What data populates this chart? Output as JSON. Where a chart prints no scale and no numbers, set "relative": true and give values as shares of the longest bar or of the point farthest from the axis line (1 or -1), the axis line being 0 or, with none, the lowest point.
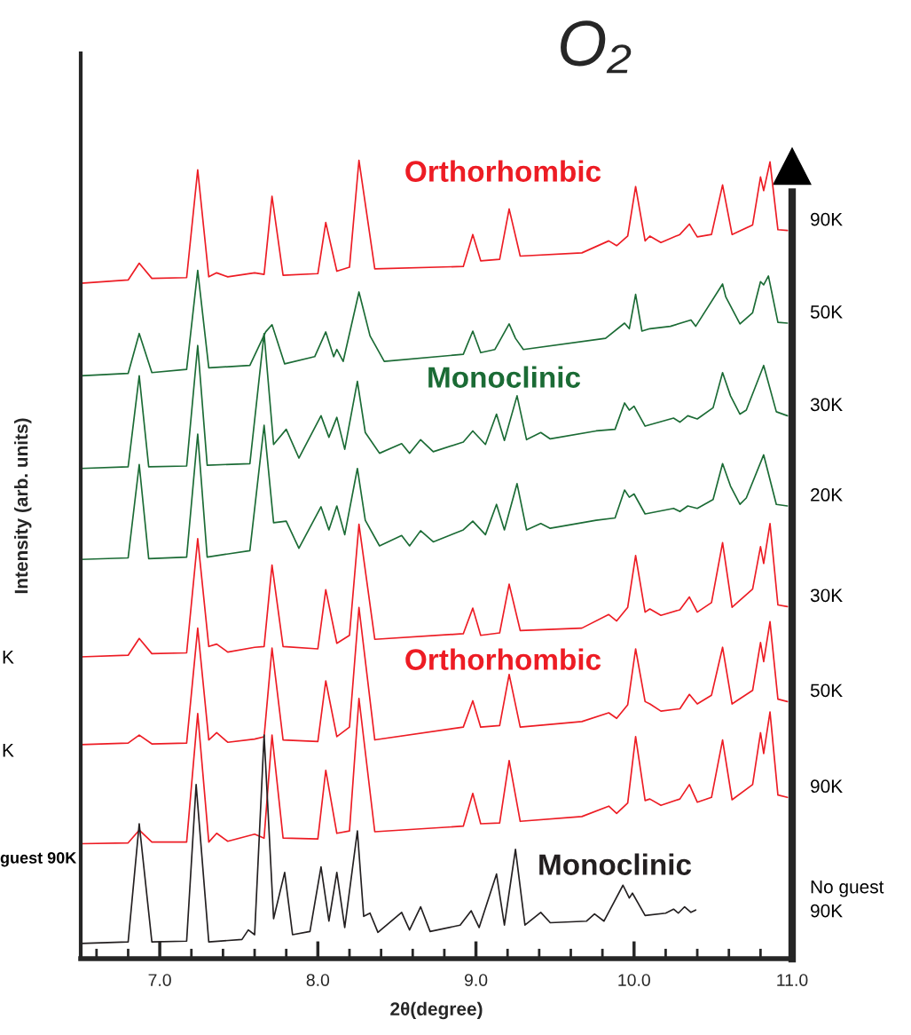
{
  "chart_data": {
    "type": "line",
    "title": "O₂",
    "xlabel": "2θ(degree)",
    "ylabel": "Intensity (arb. units)",
    "relative": true,
    "legend": false,
    "grid": false,
    "marker": "none",
    "line_style": "solid",
    "xlim": [
      6.5,
      11.0
    ],
    "xticks": [
      {
        "value": 6.6,
        "label": null
      },
      {
        "value": 6.8,
        "label": null
      },
      {
        "value": 7.0,
        "label": "7.0"
      },
      {
        "value": 7.2,
        "label": null
      },
      {
        "value": 7.4,
        "label": null
      },
      {
        "value": 7.6,
        "label": null
      },
      {
        "value": 7.8,
        "label": null
      },
      {
        "value": 8.0,
        "label": "8.0"
      },
      {
        "value": 8.2,
        "label": null
      },
      {
        "value": 8.4,
        "label": null
      },
      {
        "value": 8.6,
        "label": null
      },
      {
        "value": 8.8,
        "label": null
      },
      {
        "value": 9.0,
        "label": "9.0"
      },
      {
        "value": 9.2,
        "label": null
      },
      {
        "value": 9.4,
        "label": null
      },
      {
        "value": 9.6,
        "label": null
      },
      {
        "value": 9.8,
        "label": null
      },
      {
        "value": 10.0,
        "label": "10.0"
      },
      {
        "value": 10.2,
        "label": null
      },
      {
        "value": 10.4,
        "label": null
      },
      {
        "value": 10.6,
        "label": null
      },
      {
        "value": 10.8,
        "label": null
      },
      {
        "value": 11.0,
        "label": "11.0"
      }
    ],
    "annotations": [
      "Orthorhombic",
      "Monoclinic",
      "Orthorhombic",
      "Monoclinic",
      "K",
      "K",
      "guest 90K"
    ],
    "series": [
      {
        "name": "90K",
        "color": "#ed1c24",
        "x": [
          6.5,
          6.8,
          6.87,
          6.95,
          7.17,
          7.24,
          7.31,
          7.36,
          7.43,
          7.6,
          7.66,
          7.71,
          7.78,
          8.0,
          8.05,
          8.12,
          8.2,
          8.26,
          8.36,
          8.92,
          8.98,
          9.03,
          9.15,
          9.21,
          9.28,
          9.67,
          9.84,
          9.89,
          9.96,
          10.01,
          10.07,
          10.1,
          10.17,
          10.29,
          10.35,
          10.4,
          10.49,
          10.56,
          10.62,
          10.75,
          10.8,
          10.82,
          10.86,
          10.91,
          10.97
        ],
        "values": [
          0.846,
          0.85,
          0.871,
          0.852,
          0.853,
          0.988,
          0.854,
          0.859,
          0.854,
          0.859,
          0.857,
          0.955,
          0.856,
          0.858,
          0.922,
          0.861,
          0.866,
          1.0,
          0.864,
          0.867,
          0.907,
          0.874,
          0.876,
          0.939,
          0.88,
          0.884,
          0.899,
          0.893,
          0.905,
          0.967,
          0.899,
          0.905,
          0.897,
          0.907,
          0.92,
          0.904,
          0.907,
          0.969,
          0.907,
          0.919,
          0.979,
          0.962,
          0.998,
          0.913,
          0.912
        ]
      },
      {
        "name": "50K",
        "color": "#1b6b35",
        "x": [
          6.5,
          6.8,
          6.87,
          6.95,
          7.17,
          7.24,
          7.31,
          7.57,
          7.67,
          7.71,
          7.79,
          7.98,
          8.05,
          8.1,
          8.12,
          8.16,
          8.26,
          8.33,
          8.42,
          8.92,
          8.98,
          9.03,
          9.12,
          9.21,
          9.25,
          9.3,
          9.82,
          9.94,
          9.97,
          10.01,
          10.05,
          10.1,
          10.23,
          10.36,
          10.39,
          10.56,
          10.58,
          10.67,
          10.75,
          10.8,
          10.82,
          10.85,
          10.91,
          10.97
        ],
        "values": [
          0.73,
          0.733,
          0.783,
          0.734,
          0.738,
          0.862,
          0.74,
          0.743,
          0.785,
          0.794,
          0.745,
          0.754,
          0.785,
          0.754,
          0.763,
          0.748,
          0.835,
          0.78,
          0.748,
          0.757,
          0.786,
          0.759,
          0.763,
          0.795,
          0.777,
          0.763,
          0.777,
          0.796,
          0.789,
          0.832,
          0.786,
          0.789,
          0.792,
          0.8,
          0.792,
          0.845,
          0.829,
          0.795,
          0.809,
          0.848,
          0.844,
          0.855,
          0.797,
          0.796
        ]
      },
      {
        "name": "30K",
        "color": "#1b6b35",
        "x": [
          6.5,
          6.8,
          6.87,
          6.93,
          7.17,
          7.24,
          7.3,
          7.57,
          7.66,
          7.72,
          7.8,
          7.88,
          8.02,
          8.07,
          8.12,
          8.17,
          8.25,
          8.3,
          8.39,
          8.53,
          8.58,
          8.65,
          8.73,
          8.92,
          8.98,
          9.06,
          9.13,
          9.18,
          9.26,
          9.32,
          9.41,
          9.47,
          9.76,
          9.88,
          9.94,
          9.97,
          10.0,
          10.07,
          10.25,
          10.29,
          10.34,
          10.4,
          10.5,
          10.56,
          10.61,
          10.67,
          10.71,
          10.82,
          10.9,
          10.97
        ],
        "values": [
          0.614,
          0.616,
          0.73,
          0.616,
          0.617,
          0.768,
          0.618,
          0.62,
          0.783,
          0.644,
          0.663,
          0.627,
          0.68,
          0.653,
          0.678,
          0.638,
          0.723,
          0.659,
          0.633,
          0.645,
          0.633,
          0.65,
          0.635,
          0.647,
          0.661,
          0.644,
          0.682,
          0.649,
          0.705,
          0.65,
          0.659,
          0.651,
          0.661,
          0.663,
          0.696,
          0.687,
          0.692,
          0.667,
          0.677,
          0.672,
          0.68,
          0.676,
          0.69,
          0.734,
          0.705,
          0.682,
          0.687,
          0.743,
          0.685,
          0.68
        ]
      },
      {
        "name": "20K",
        "color": "#1b6b35",
        "x": [
          6.5,
          6.8,
          6.87,
          6.93,
          7.17,
          7.24,
          7.3,
          7.57,
          7.66,
          7.72,
          7.8,
          7.88,
          8.02,
          8.07,
          8.12,
          8.17,
          8.25,
          8.3,
          8.39,
          8.53,
          8.58,
          8.65,
          8.73,
          8.92,
          8.98,
          9.06,
          9.13,
          9.18,
          9.26,
          9.32,
          9.41,
          9.47,
          9.76,
          9.88,
          9.94,
          9.97,
          10.0,
          10.07,
          10.25,
          10.29,
          10.34,
          10.4,
          10.5,
          10.56,
          10.61,
          10.67,
          10.71,
          10.82,
          10.9,
          10.97
        ],
        "values": [
          0.5,
          0.502,
          0.619,
          0.501,
          0.503,
          0.657,
          0.503,
          0.511,
          0.668,
          0.546,
          0.548,
          0.514,
          0.566,
          0.537,
          0.567,
          0.531,
          0.614,
          0.549,
          0.517,
          0.53,
          0.517,
          0.536,
          0.522,
          0.537,
          0.548,
          0.531,
          0.569,
          0.537,
          0.595,
          0.537,
          0.545,
          0.539,
          0.549,
          0.552,
          0.587,
          0.578,
          0.582,
          0.557,
          0.564,
          0.56,
          0.567,
          0.564,
          0.575,
          0.62,
          0.592,
          0.569,
          0.577,
          0.631,
          0.569,
          0.567
        ]
      },
      {
        "name": "30K",
        "color": "#ed1c24",
        "x": [
          6.5,
          6.8,
          6.87,
          6.95,
          7.17,
          7.24,
          7.31,
          7.36,
          7.43,
          7.6,
          7.66,
          7.71,
          7.78,
          8.0,
          8.05,
          8.12,
          8.2,
          8.26,
          8.36,
          8.92,
          8.98,
          9.03,
          9.15,
          9.21,
          9.28,
          9.67,
          9.84,
          9.89,
          9.96,
          10.01,
          10.07,
          10.1,
          10.17,
          10.29,
          10.35,
          10.4,
          10.49,
          10.56,
          10.62,
          10.75,
          10.8,
          10.82,
          10.86,
          10.91,
          10.97
        ],
        "values": [
          0.378,
          0.38,
          0.401,
          0.382,
          0.383,
          0.526,
          0.391,
          0.394,
          0.384,
          0.39,
          0.391,
          0.493,
          0.391,
          0.388,
          0.462,
          0.395,
          0.405,
          0.544,
          0.4,
          0.407,
          0.439,
          0.405,
          0.408,
          0.469,
          0.411,
          0.414,
          0.431,
          0.423,
          0.44,
          0.505,
          0.434,
          0.438,
          0.43,
          0.437,
          0.453,
          0.434,
          0.446,
          0.521,
          0.44,
          0.463,
          0.516,
          0.495,
          0.545,
          0.443,
          0.441
        ]
      },
      {
        "name": "50K",
        "color": "#ed1c24",
        "x": [
          6.5,
          6.8,
          6.87,
          6.95,
          7.17,
          7.24,
          7.31,
          7.36,
          7.43,
          7.6,
          7.66,
          7.71,
          7.78,
          8.0,
          8.05,
          8.12,
          8.2,
          8.26,
          8.36,
          8.92,
          8.98,
          9.03,
          9.15,
          9.21,
          9.28,
          9.67,
          9.84,
          9.89,
          9.96,
          10.01,
          10.07,
          10.1,
          10.17,
          10.29,
          10.35,
          10.4,
          10.49,
          10.56,
          10.62,
          10.75,
          10.8,
          10.82,
          10.86,
          10.91,
          10.97
        ],
        "values": [
          0.268,
          0.27,
          0.28,
          0.269,
          0.27,
          0.414,
          0.274,
          0.283,
          0.271,
          0.275,
          0.278,
          0.389,
          0.274,
          0.272,
          0.348,
          0.278,
          0.29,
          0.44,
          0.274,
          0.29,
          0.323,
          0.29,
          0.292,
          0.356,
          0.29,
          0.297,
          0.308,
          0.301,
          0.318,
          0.388,
          0.322,
          0.319,
          0.31,
          0.313,
          0.331,
          0.319,
          0.33,
          0.39,
          0.319,
          0.336,
          0.396,
          0.372,
          0.422,
          0.325,
          0.322
        ]
      },
      {
        "name": "90K",
        "color": "#ed1c24",
        "x": [
          6.5,
          6.8,
          6.87,
          6.95,
          7.17,
          7.24,
          7.31,
          7.36,
          7.43,
          7.6,
          7.66,
          7.71,
          7.78,
          8.0,
          8.05,
          8.12,
          8.2,
          8.26,
          8.36,
          8.92,
          8.98,
          9.03,
          9.15,
          9.21,
          9.28,
          9.67,
          9.84,
          9.89,
          9.96,
          10.01,
          10.07,
          10.1,
          10.17,
          10.29,
          10.35,
          10.4,
          10.49,
          10.56,
          10.62,
          10.75,
          10.8,
          10.82,
          10.86,
          10.91,
          10.97
        ],
        "values": [
          0.144,
          0.145,
          0.161,
          0.146,
          0.146,
          0.307,
          0.146,
          0.157,
          0.147,
          0.156,
          0.151,
          0.28,
          0.151,
          0.15,
          0.236,
          0.157,
          0.16,
          0.326,
          0.159,
          0.166,
          0.207,
          0.169,
          0.17,
          0.248,
          0.172,
          0.178,
          0.191,
          0.182,
          0.195,
          0.278,
          0.198,
          0.2,
          0.192,
          0.2,
          0.218,
          0.196,
          0.202,
          0.274,
          0.199,
          0.218,
          0.283,
          0.257,
          0.309,
          0.205,
          0.202
        ]
      },
      {
        "name": "No guest\n90K",
        "color": "#231f20",
        "x": [
          6.5,
          6.8,
          6.87,
          6.95,
          7.17,
          7.23,
          7.31,
          7.52,
          7.56,
          7.6,
          7.66,
          7.72,
          7.79,
          7.84,
          7.95,
          8.02,
          8.07,
          8.12,
          8.17,
          8.25,
          8.29,
          8.33,
          8.38,
          8.53,
          8.58,
          8.65,
          8.71,
          8.9,
          8.97,
          9.02,
          9.13,
          9.18,
          9.25,
          9.31,
          9.41,
          9.47,
          9.7,
          9.75,
          9.81,
          9.93,
          9.97,
          9.99,
          10.07,
          10.2,
          10.25,
          10.28,
          10.32,
          10.36,
          10.39
        ],
        "values": [
          0.019,
          0.021,
          0.169,
          0.021,
          0.022,
          0.218,
          0.021,
          0.024,
          0.036,
          0.03,
          0.28,
          0.05,
          0.108,
          0.03,
          0.034,
          0.115,
          0.047,
          0.108,
          0.039,
          0.16,
          0.053,
          0.057,
          0.033,
          0.058,
          0.036,
          0.065,
          0.034,
          0.042,
          0.06,
          0.039,
          0.106,
          0.042,
          0.137,
          0.042,
          0.058,
          0.045,
          0.047,
          0.056,
          0.047,
          0.092,
          0.076,
          0.082,
          0.054,
          0.057,
          0.062,
          0.057,
          0.065,
          0.058,
          0.061
        ]
      }
    ]
  }
}
